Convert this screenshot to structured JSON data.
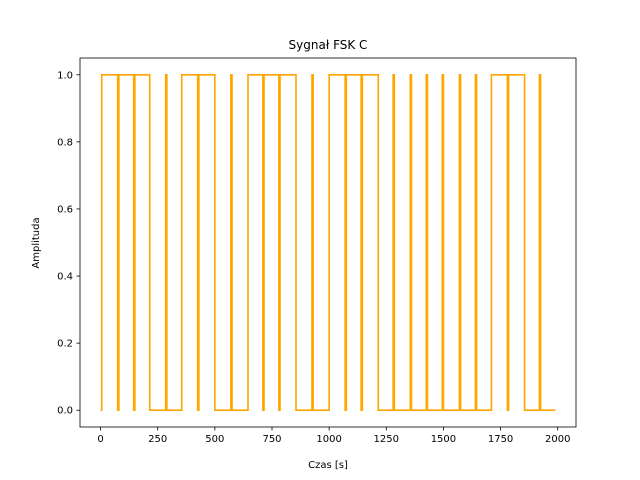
{
  "chart_data": {
    "type": "line",
    "title": "Sygnał FSK C",
    "xlabel": "Czas [s]",
    "ylabel": "Amplituda",
    "xlim": [
      -90,
      2080
    ],
    "ylim": [
      -0.05,
      1.05
    ],
    "grid": false,
    "xticks": [
      0,
      250,
      500,
      750,
      1000,
      1250,
      1500,
      1750,
      2000
    ],
    "xtick_labels": [
      "0",
      "250",
      "500",
      "750",
      "1000",
      "1250",
      "1500",
      "1750",
      "2000"
    ],
    "yticks": [
      0.0,
      0.2,
      0.4,
      0.6,
      0.8,
      1.0
    ],
    "ytick_labels": [
      "0.0",
      "0.2",
      "0.4",
      "0.6",
      "0.8",
      "1.0"
    ],
    "series": [
      {
        "color": "#ffa500",
        "x": [
          0,
          5,
          5,
          75,
          75,
          80,
          80,
          145,
          145,
          150,
          150,
          215,
          215,
          285,
          285,
          290,
          290,
          355,
          355,
          425,
          425,
          430,
          430,
          500,
          500,
          570,
          570,
          575,
          575,
          645,
          645,
          710,
          710,
          715,
          715,
          780,
          780,
          785,
          785,
          855,
          855,
          925,
          925,
          930,
          930,
          1000,
          1000,
          1070,
          1070,
          1075,
          1075,
          1140,
          1140,
          1145,
          1145,
          1215,
          1215,
          1280,
          1280,
          1285,
          1285,
          1355,
          1355,
          1360,
          1360,
          1425,
          1425,
          1430,
          1430,
          1495,
          1495,
          1500,
          1500,
          1570,
          1570,
          1575,
          1575,
          1640,
          1640,
          1645,
          1645,
          1710,
          1710,
          1780,
          1780,
          1785,
          1785,
          1855,
          1855,
          1920,
          1920,
          1925,
          1925,
          1990
        ],
        "y": [
          0,
          0,
          1,
          1,
          0,
          0,
          1,
          1,
          0,
          0,
          1,
          1,
          0,
          0,
          1,
          1,
          0,
          0,
          1,
          1,
          0,
          0,
          1,
          1,
          0,
          0,
          1,
          1,
          0,
          0,
          1,
          1,
          0,
          0,
          1,
          1,
          0,
          0,
          1,
          1,
          0,
          0,
          1,
          1,
          0,
          0,
          1,
          1,
          0,
          0,
          1,
          1,
          0,
          0,
          1,
          1,
          0,
          0,
          1,
          1,
          0,
          0,
          1,
          1,
          0,
          0,
          1,
          1,
          0,
          0,
          1,
          1,
          0,
          0,
          1,
          1,
          0,
          0,
          1,
          1,
          0,
          0,
          1,
          1,
          0,
          0,
          1,
          1,
          0,
          0,
          1,
          1,
          0,
          0
        ]
      }
    ]
  }
}
